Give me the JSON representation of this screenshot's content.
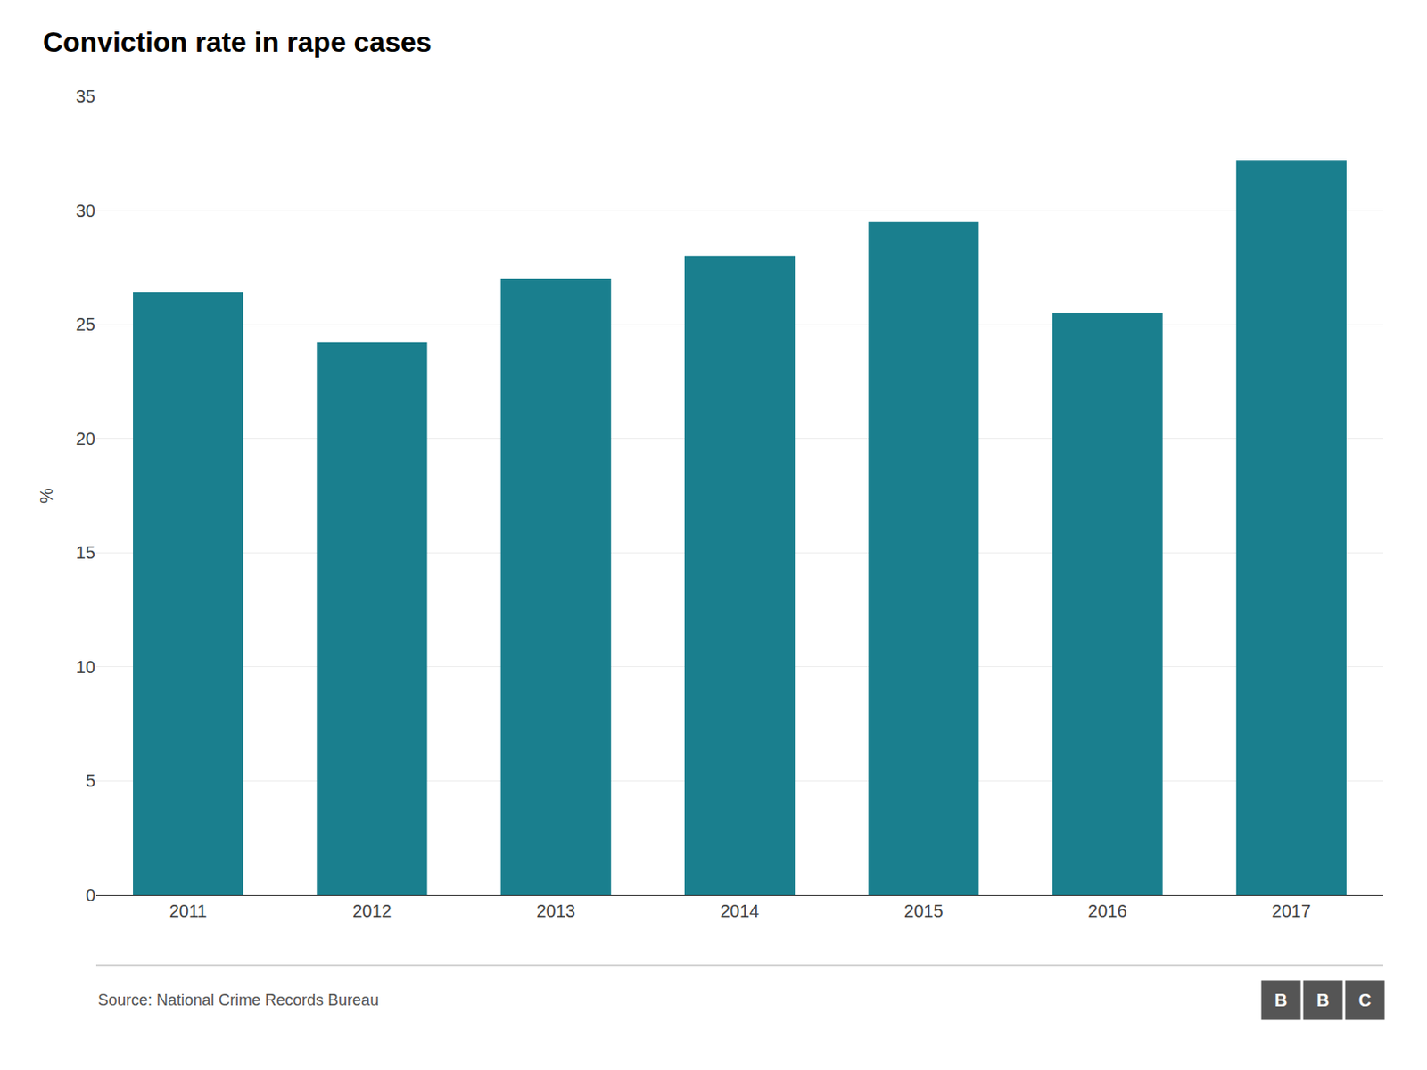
{
  "chart_data": {
    "type": "bar",
    "title": "Conviction rate in rape cases",
    "ylabel": "%",
    "categories": [
      "2011",
      "2012",
      "2013",
      "2014",
      "2015",
      "2016",
      "2017"
    ],
    "values": [
      26.4,
      24.2,
      27.0,
      28.0,
      29.5,
      25.5,
      32.2
    ],
    "color": "#1a7f8e",
    "ylim": [
      0,
      35
    ],
    "yticks": [
      0,
      5,
      10,
      15,
      20,
      25,
      30,
      35
    ],
    "grid": true,
    "annotations": [
      "Source: National Crime Records Bureau",
      "B",
      "B",
      "C"
    ]
  }
}
